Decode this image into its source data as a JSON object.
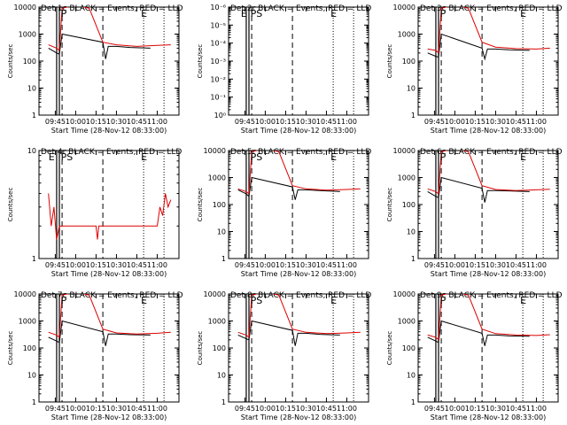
{
  "figure": {
    "xlabel": "Start Time (28-Nov-12 08:33:00)",
    "ylabel": "Counts/sec",
    "x_ticks": [
      "09:45",
      "10:00",
      "10:15",
      "10:30",
      "10:45",
      "11:00"
    ]
  },
  "chart_data": [
    {
      "type": "line",
      "title": "Det 1c BLACK = Events, RED = LLD",
      "ylim": [
        1,
        10000
      ],
      "yscale": "log",
      "y_ticks": [
        "1",
        "10",
        "100",
        "1000",
        "10000"
      ],
      "markers": [
        {
          "label": "P",
          "x": "09:51"
        },
        {
          "label": "E",
          "x": "10:50"
        }
      ],
      "series": [
        {
          "name": "Events",
          "color": "#000000",
          "x": [
            "09:40",
            "09:46",
            "09:48",
            "09:50",
            "10:20",
            "10:22",
            "10:24",
            "10:30",
            "10:40",
            "10:55"
          ],
          "y": [
            300,
            200,
            180,
            1000,
            500,
            120,
            350,
            350,
            320,
            300
          ]
        },
        {
          "name": "LLD",
          "color": "#dd0000",
          "x": [
            "09:40",
            "09:46",
            "09:48",
            "09:50",
            "10:00",
            "10:10",
            "10:20",
            "10:30",
            "10:45",
            "11:00",
            "11:10"
          ],
          "y": [
            400,
            300,
            250,
            9000,
            12000,
            9000,
            500,
            400,
            350,
            380,
            400
          ]
        }
      ]
    },
    {
      "type": "line",
      "title": "Det 2r BLACK = Events, RED = LLD",
      "ylim": [
        1,
        1e-06
      ],
      "yscale": "log",
      "y_ticks": [
        "10⁰",
        "10⁻¹",
        "10⁻²",
        "10⁻³",
        "10⁻⁴",
        "10⁻⁵",
        "10⁻⁶"
      ],
      "markers": [
        {
          "label": "E",
          "x": "09:44"
        },
        {
          "label": "PS",
          "x": "09:51"
        },
        {
          "label": "E",
          "x": "10:50"
        }
      ],
      "series": []
    },
    {
      "type": "line",
      "title": "Det 3c BLACK = Events, RED = LLD",
      "ylim": [
        1,
        10000
      ],
      "yscale": "log",
      "y_ticks": [
        "1",
        "10",
        "100",
        "1000",
        "10000"
      ],
      "markers": [
        {
          "label": "P",
          "x": "09:51"
        },
        {
          "label": "E",
          "x": "10:50"
        }
      ],
      "series": [
        {
          "name": "Events",
          "color": "#000000",
          "x": [
            "09:40",
            "09:46",
            "09:48",
            "09:50",
            "10:20",
            "10:22",
            "10:24",
            "10:30",
            "10:40",
            "10:55"
          ],
          "y": [
            200,
            150,
            140,
            1000,
            300,
            120,
            280,
            280,
            260,
            250
          ]
        },
        {
          "name": "LLD",
          "color": "#dd0000",
          "x": [
            "09:40",
            "09:46",
            "09:48",
            "09:50",
            "10:00",
            "10:10",
            "10:20",
            "10:30",
            "10:45",
            "11:00",
            "11:10"
          ],
          "y": [
            280,
            250,
            200,
            9000,
            12000,
            9000,
            500,
            330,
            290,
            280,
            300
          ]
        }
      ]
    },
    {
      "type": "line",
      "title": "Det 4r BLACK = Events, RED = LLD",
      "ylim": [
        1,
        10
      ],
      "yscale": "log",
      "y_ticks": [
        "1",
        "10"
      ],
      "markers": [
        {
          "label": "E",
          "x": "09:42"
        },
        {
          "label": "PS",
          "x": "09:51"
        },
        {
          "label": "E",
          "x": "10:50"
        }
      ],
      "series": [
        {
          "name": "LLD",
          "color": "#dd0000",
          "x": [
            "09:40",
            "09:42",
            "09:44",
            "09:46",
            "09:48",
            "10:15",
            "10:16",
            "10:17",
            "11:00",
            "11:02",
            "11:04",
            "11:06",
            "11:08",
            "11:10"
          ],
          "y": [
            4,
            2,
            3,
            1.5,
            2,
            2,
            1.5,
            2,
            2,
            3,
            2.5,
            4,
            3,
            3.5
          ]
        }
      ]
    },
    {
      "type": "line",
      "title": "Det 5r BLACK = Events, RED = LLD",
      "ylim": [
        1,
        10000
      ],
      "yscale": "log",
      "y_ticks": [
        "1",
        "10",
        "100",
        "1000",
        "10000"
      ],
      "markers": [
        {
          "label": "PS",
          "x": "09:51"
        },
        {
          "label": "E",
          "x": "10:50"
        }
      ],
      "series": [
        {
          "name": "Events",
          "color": "#000000",
          "x": [
            "09:40",
            "09:46",
            "09:48",
            "09:50",
            "10:20",
            "10:22",
            "10:24",
            "10:30",
            "10:40",
            "10:55"
          ],
          "y": [
            350,
            250,
            200,
            1000,
            450,
            150,
            350,
            350,
            330,
            300
          ]
        },
        {
          "name": "LLD",
          "color": "#dd0000",
          "x": [
            "09:40",
            "09:46",
            "09:48",
            "09:50",
            "10:00",
            "10:10",
            "10:20",
            "10:30",
            "10:45",
            "11:00",
            "11:10"
          ],
          "y": [
            380,
            300,
            250,
            9000,
            12000,
            9000,
            500,
            380,
            340,
            360,
            380
          ]
        }
      ]
    },
    {
      "type": "line",
      "title": "Det 6c BLACK = Events, RED = LLD",
      "ylim": [
        1,
        10000
      ],
      "yscale": "log",
      "y_ticks": [
        "1",
        "10",
        "100",
        "1000",
        "10000"
      ],
      "markers": [
        {
          "label": "P",
          "x": "09:51"
        },
        {
          "label": "E",
          "x": "10:50"
        }
      ],
      "series": [
        {
          "name": "Events",
          "color": "#000000",
          "x": [
            "09:40",
            "09:46",
            "09:48",
            "09:50",
            "10:20",
            "10:22",
            "10:24",
            "10:30",
            "10:40",
            "10:55"
          ],
          "y": [
            300,
            200,
            180,
            1000,
            400,
            120,
            330,
            330,
            320,
            300
          ]
        },
        {
          "name": "LLD",
          "color": "#dd0000",
          "x": [
            "09:40",
            "09:46",
            "09:48",
            "09:50",
            "10:00",
            "10:10",
            "10:20",
            "10:30",
            "10:45",
            "11:00",
            "11:10"
          ],
          "y": [
            380,
            300,
            250,
            9000,
            12000,
            9000,
            500,
            360,
            330,
            350,
            370
          ]
        }
      ]
    },
    {
      "type": "line",
      "title": "Det 7c BLACK = Events, RED = LLD",
      "ylim": [
        1,
        10000
      ],
      "yscale": "log",
      "y_ticks": [
        "1",
        "10",
        "100",
        "1000",
        "10000"
      ],
      "markers": [
        {
          "label": "P",
          "x": "09:51"
        },
        {
          "label": "E",
          "x": "10:50"
        }
      ],
      "series": [
        {
          "name": "Events",
          "color": "#000000",
          "x": [
            "09:40",
            "09:46",
            "09:48",
            "09:50",
            "10:20",
            "10:22",
            "10:24",
            "10:30",
            "10:40",
            "10:55"
          ],
          "y": [
            250,
            180,
            160,
            1000,
            400,
            120,
            330,
            330,
            310,
            300
          ]
        },
        {
          "name": "LLD",
          "color": "#dd0000",
          "x": [
            "09:40",
            "09:46",
            "09:48",
            "09:50",
            "10:00",
            "10:10",
            "10:20",
            "10:30",
            "10:45",
            "11:00",
            "11:10"
          ],
          "y": [
            380,
            300,
            250,
            9000,
            12000,
            9000,
            500,
            360,
            330,
            350,
            380
          ]
        }
      ]
    },
    {
      "type": "line",
      "title": "Det 8r BLACK = Events, RED = LLD",
      "ylim": [
        1,
        10000
      ],
      "yscale": "log",
      "y_ticks": [
        "1",
        "10",
        "100",
        "1000",
        "10000"
      ],
      "markers": [
        {
          "label": "PS",
          "x": "09:51"
        },
        {
          "label": "E",
          "x": "10:50"
        }
      ],
      "series": [
        {
          "name": "Events",
          "color": "#000000",
          "x": [
            "09:40",
            "09:46",
            "09:48",
            "09:50",
            "10:20",
            "10:22",
            "10:24",
            "10:30",
            "10:40",
            "10:55"
          ],
          "y": [
            300,
            220,
            200,
            1000,
            450,
            120,
            350,
            350,
            320,
            300
          ]
        },
        {
          "name": "LLD",
          "color": "#dd0000",
          "x": [
            "09:40",
            "09:46",
            "09:48",
            "09:50",
            "10:00",
            "10:10",
            "10:20",
            "10:30",
            "10:45",
            "11:00",
            "11:10"
          ],
          "y": [
            380,
            300,
            250,
            9000,
            12000,
            9000,
            500,
            380,
            340,
            360,
            380
          ]
        }
      ]
    },
    {
      "type": "line",
      "title": "Det 9c BLACK = Events, RED = LLD",
      "ylim": [
        1,
        10000
      ],
      "yscale": "log",
      "y_ticks": [
        "1",
        "10",
        "100",
        "1000",
        "10000"
      ],
      "markers": [
        {
          "label": "P",
          "x": "09:51"
        },
        {
          "label": "E",
          "x": "10:50"
        }
      ],
      "series": [
        {
          "name": "Events",
          "color": "#000000",
          "x": [
            "09:40",
            "09:46",
            "09:48",
            "09:50",
            "10:20",
            "10:22",
            "10:24",
            "10:30",
            "10:40",
            "10:55"
          ],
          "y": [
            250,
            180,
            160,
            1000,
            350,
            120,
            300,
            300,
            280,
            270
          ]
        },
        {
          "name": "LLD",
          "color": "#dd0000",
          "x": [
            "09:40",
            "09:46",
            "09:48",
            "09:50",
            "10:00",
            "10:10",
            "10:20",
            "10:30",
            "10:45",
            "11:00",
            "11:10"
          ],
          "y": [
            300,
            250,
            200,
            9000,
            12000,
            9000,
            500,
            340,
            300,
            290,
            310
          ]
        }
      ]
    }
  ],
  "vlines": {
    "solid": [
      "09:46",
      "09:48"
    ],
    "dashed": [
      "09:50",
      "10:20"
    ],
    "dotted": [
      "10:50",
      "11:05"
    ]
  }
}
